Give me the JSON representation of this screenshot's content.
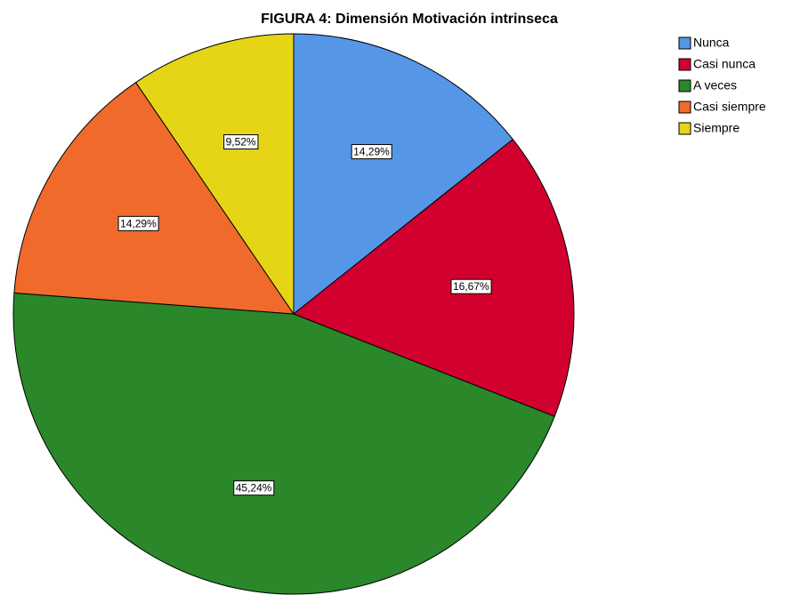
{
  "chart_data": {
    "type": "pie",
    "title": "FIGURA 4: Dimensión Motivación intrinseca",
    "categories": [
      "Nunca",
      "Casi nunca",
      "A veces",
      "Casi siempre",
      "Siempre"
    ],
    "values": [
      14.29,
      16.67,
      45.24,
      14.29,
      9.52
    ],
    "value_labels": [
      "14,29%",
      "16,67%",
      "45,24%",
      "14,29%",
      "9,52%"
    ],
    "colors": [
      "#5596e6",
      "#d2002e",
      "#2a872a",
      "#f06a2c",
      "#e6d516"
    ],
    "legend": "right"
  }
}
